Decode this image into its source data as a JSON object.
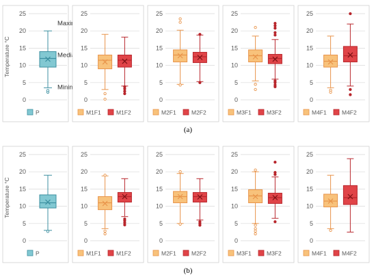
{
  "captions": {
    "a": "(a)",
    "b": "(b)"
  },
  "colors": {
    "p_fill": "#82C8D2",
    "p_stroke": "#3C8FA0",
    "f1_fill": "#F8C27B",
    "f1_stroke": "#E8944A",
    "f2_fill": "#E04448",
    "f2_stroke": "#B8262C",
    "frame": "#D0D0D0",
    "grid": "#D9D9D9",
    "text": "#595959"
  },
  "chart_data": [
    {
      "type": "box",
      "panel": "a",
      "ylabel": "Temperature °C",
      "ylim": [
        0,
        25
      ],
      "yticks": [
        0,
        5,
        10,
        15,
        20,
        25
      ],
      "grid": true,
      "legend_position": "bottom",
      "annotations": [
        "Maximum",
        "Mediam",
        "Minimum"
      ],
      "groups": [
        {
          "legend": [
            "P"
          ],
          "series": [
            {
              "name": "P",
              "color": "p",
              "min": 3.5,
              "q1": 9.5,
              "median": 12.0,
              "q3": 14.0,
              "max": 20.0,
              "mean": 11.8,
              "outliers": [
                2.2,
                2.7
              ]
            }
          ]
        },
        {
          "legend": [
            "M1F1",
            "M1F2"
          ],
          "series": [
            {
              "name": "M1F1",
              "color": "f1",
              "min": 3.0,
              "q1": 9.0,
              "median": 11.5,
              "q3": 13.0,
              "max": 19.0,
              "mean": 11.0,
              "outliers": [
                1.8,
                0.2
              ]
            },
            {
              "name": "M1F2",
              "color": "f2",
              "min": 4.0,
              "q1": 9.5,
              "median": 11.5,
              "q3": 13.0,
              "max": 18.2,
              "mean": 11.2,
              "outliers": [
                3.8,
                3.2,
                2.5,
                1.8
              ]
            }
          ]
        },
        {
          "legend": [
            "M2F1",
            "M2F2"
          ],
          "series": [
            {
              "name": "M2F1",
              "color": "f1",
              "min": 4.5,
              "q1": 11.0,
              "median": 13.0,
              "q3": 14.5,
              "max": 20.2,
              "mean": 12.8,
              "outliers": [
                23.5,
                22.5,
                4.3
              ]
            },
            {
              "name": "M2F2",
              "color": "f2",
              "min": 5.3,
              "q1": 10.8,
              "median": 12.5,
              "q3": 13.8,
              "max": 18.8,
              "mean": 12.3,
              "outliers": [
                19.0,
                5.0
              ]
            }
          ]
        },
        {
          "legend": [
            "M3F1",
            "M3F2"
          ],
          "series": [
            {
              "name": "M3F1",
              "color": "f1",
              "min": 5.5,
              "q1": 11.0,
              "median": 12.8,
              "q3": 14.5,
              "max": 18.5,
              "mean": 12.5,
              "outliers": [
                21.0,
                4.5,
                3.0
              ]
            },
            {
              "name": "M3F2",
              "color": "f2",
              "min": 6.0,
              "q1": 10.5,
              "median": 12.0,
              "q3": 13.2,
              "max": 17.5,
              "mean": 11.8,
              "outliers": [
                22.2,
                21.5,
                20.8,
                19.5,
                18.8,
                5.5,
                5.0,
                4.3,
                3.8
              ]
            }
          ]
        },
        {
          "legend": [
            "M4F1",
            "M4F2"
          ],
          "series": [
            {
              "name": "M4F1",
              "color": "f1",
              "min": 3.5,
              "q1": 9.5,
              "median": 11.2,
              "q3": 13.0,
              "max": 18.5,
              "mean": 11.0,
              "outliers": [
                2.8,
                2.2
              ]
            },
            {
              "name": "M4F2",
              "color": "f2",
              "min": 4.0,
              "q1": 11.0,
              "median": 12.8,
              "q3": 15.5,
              "max": 22.0,
              "mean": 13.0,
              "outliers": [
                25.0,
                3.0,
                1.5
              ]
            }
          ]
        }
      ]
    },
    {
      "type": "box",
      "panel": "b",
      "ylabel": "Temperature °C",
      "ylim": [
        0,
        25
      ],
      "yticks": [
        0,
        5,
        10,
        15,
        20,
        25
      ],
      "grid": true,
      "legend_position": "bottom",
      "annotations": [],
      "groups": [
        {
          "legend": [
            "P"
          ],
          "series": [
            {
              "name": "P",
              "color": "p",
              "min": 3.0,
              "q1": 9.5,
              "median": 11.0,
              "q3": 13.3,
              "max": 19.0,
              "mean": 11.2,
              "outliers": [
                2.7
              ]
            }
          ]
        },
        {
          "legend": [
            "M1F1",
            "M1F2"
          ],
          "series": [
            {
              "name": "M1F1",
              "color": "f1",
              "min": 3.5,
              "q1": 9.0,
              "median": 11.0,
              "q3": 12.8,
              "max": 18.8,
              "mean": 10.8,
              "outliers": [
                19.0,
                2.8,
                2.0
              ]
            },
            {
              "name": "M1F2",
              "color": "f2",
              "min": 7.0,
              "q1": 11.2,
              "median": 12.8,
              "q3": 14.0,
              "max": 18.0,
              "mean": 12.8,
              "outliers": [
                6.3,
                5.8,
                5.2,
                4.6
              ]
            }
          ]
        },
        {
          "legend": [
            "M2F1",
            "M2F2"
          ],
          "series": [
            {
              "name": "M2F1",
              "color": "f1",
              "min": 5.0,
              "q1": 11.0,
              "median": 12.8,
              "q3": 14.3,
              "max": 19.5,
              "mean": 12.8,
              "outliers": [
                20.0,
                4.8
              ]
            },
            {
              "name": "M2F2",
              "color": "f2",
              "min": 6.0,
              "q1": 11.2,
              "median": 12.8,
              "q3": 14.0,
              "max": 18.0,
              "mean": 12.7,
              "outliers": [
                5.5,
                5.0,
                4.5
              ]
            }
          ]
        },
        {
          "legend": [
            "M3F1",
            "M3F2"
          ],
          "series": [
            {
              "name": "M3F1",
              "color": "f1",
              "min": 5.0,
              "q1": 11.0,
              "median": 13.0,
              "q3": 14.8,
              "max": 20.0,
              "mean": 12.8,
              "outliers": [
                20.5,
                4.5,
                3.5,
                2.8,
                2.0
              ]
            },
            {
              "name": "M3F2",
              "color": "f2",
              "min": 6.5,
              "q1": 10.8,
              "median": 12.5,
              "q3": 13.8,
              "max": 18.5,
              "mean": 12.5,
              "outliers": [
                22.8,
                19.8,
                19.2,
                5.5
              ]
            }
          ]
        },
        {
          "legend": [
            "M4F1",
            "M4F2"
          ],
          "series": [
            {
              "name": "M4F1",
              "color": "f1",
              "min": 3.5,
              "q1": 9.8,
              "median": 11.5,
              "q3": 13.5,
              "max": 19.0,
              "mean": 11.5,
              "outliers": [
                3.0
              ]
            },
            {
              "name": "M4F2",
              "color": "f2",
              "min": 2.5,
              "q1": 10.5,
              "median": 12.5,
              "q3": 16.0,
              "max": 23.8,
              "mean": 12.8,
              "outliers": []
            }
          ]
        }
      ]
    }
  ]
}
